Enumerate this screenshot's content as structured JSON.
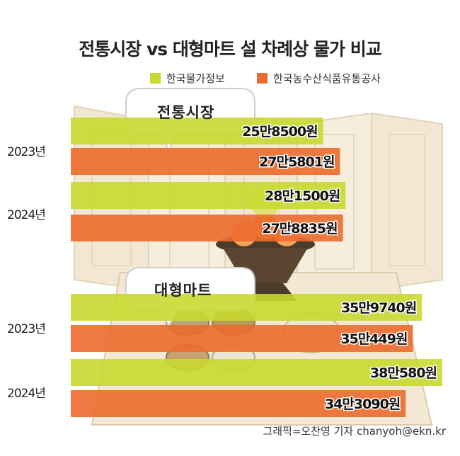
{
  "title": "전통시장 vs 대형마트 설 차례상 물가 비교",
  "colors": {
    "hankook": "#c8d92f",
    "at": "#ec6b2e",
    "background": "#f3ead8"
  },
  "chart_data": {
    "type": "bar",
    "orientation": "horizontal",
    "title": "전통시장 vs 대형마트 설 차례상 물가 비교",
    "legend": {
      "position": "top",
      "entries": [
        {
          "label": "한국물가정보",
          "color": "#c8d92f"
        },
        {
          "label": "한국농수산식품유통공사",
          "color": "#ec6b2e"
        }
      ]
    },
    "groups": [
      {
        "name": "전통시장",
        "years": [
          {
            "year": "2023년",
            "bars": [
              {
                "series": "한국물가정보",
                "value": 258500,
                "label": "25만8500원"
              },
              {
                "series": "한국농수산식품유통공사",
                "value": 275801,
                "label": "27만5801원"
              }
            ]
          },
          {
            "year": "2024년",
            "bars": [
              {
                "series": "한국물가정보",
                "value": 281500,
                "label": "28만1500원"
              },
              {
                "series": "한국농수산식품유통공사",
                "value": 278835,
                "label": "27만8835원"
              }
            ]
          }
        ]
      },
      {
        "name": "대형마트",
        "years": [
          {
            "year": "2023년",
            "bars": [
              {
                "series": "한국물가정보",
                "value": 359740,
                "label": "35만9740원"
              },
              {
                "series": "한국농수산식품유통공사",
                "value": 350449,
                "label": "35만449원"
              }
            ]
          },
          {
            "year": "2024년",
            "bars": [
              {
                "series": "한국물가정보",
                "value": 380580,
                "label": "38만580원"
              },
              {
                "series": "한국농수산식품유통공사",
                "value": 343090,
                "label": "34만3090원"
              }
            ]
          }
        ]
      }
    ]
  },
  "credit": "그래픽=오찬영 기자 chanyoh@ekn.kr"
}
